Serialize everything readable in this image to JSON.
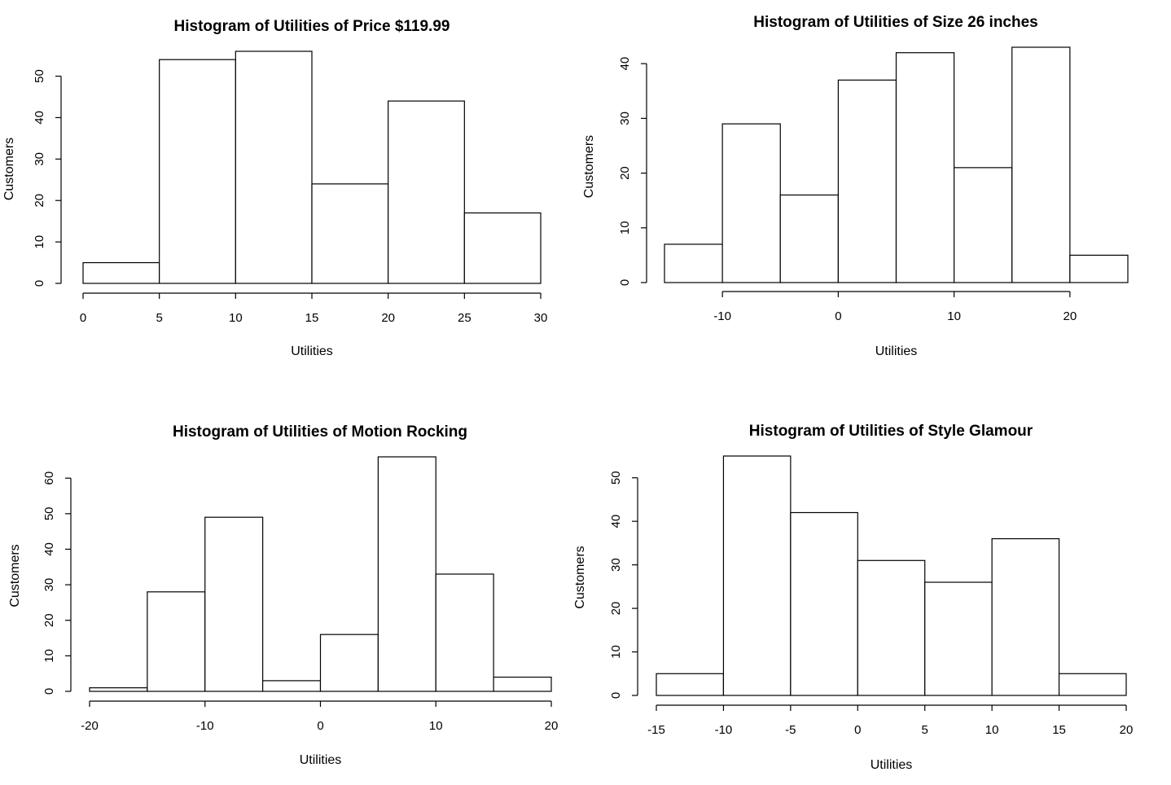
{
  "chart_data": [
    {
      "type": "bar",
      "title": "Histogram of Utilities of Price $119.99",
      "xlabel": "Utilities",
      "ylabel": "Customers",
      "bins": [
        [
          0,
          5
        ],
        [
          5,
          10
        ],
        [
          10,
          15
        ],
        [
          15,
          20
        ],
        [
          20,
          25
        ],
        [
          25,
          30
        ]
      ],
      "values": [
        5,
        54,
        56,
        24,
        44,
        17
      ],
      "xticks": [
        0,
        5,
        10,
        15,
        20,
        25,
        30
      ],
      "xtick_labels": [
        "0",
        "5",
        "10",
        "15",
        "20",
        "25",
        "30"
      ],
      "yticks": [
        0,
        10,
        20,
        30,
        40,
        50
      ],
      "ytick_labels": [
        "0",
        "10",
        "20",
        "30",
        "40",
        "50"
      ],
      "xlim": [
        0,
        30
      ],
      "ylim": [
        0,
        56
      ],
      "grid": false
    },
    {
      "type": "bar",
      "title": "Histogram of Utilities of Size 26 inches",
      "xlabel": "Utilities",
      "ylabel": "Customers",
      "bins": [
        [
          -15,
          -10
        ],
        [
          -10,
          -5
        ],
        [
          -5,
          0
        ],
        [
          0,
          5
        ],
        [
          5,
          10
        ],
        [
          10,
          15
        ],
        [
          15,
          20
        ],
        [
          20,
          25
        ]
      ],
      "values": [
        7,
        29,
        16,
        37,
        42,
        21,
        43,
        5
      ],
      "xticks": [
        -10,
        0,
        10,
        20
      ],
      "xtick_labels": [
        "-10",
        "0",
        "10",
        "20"
      ],
      "yticks": [
        0,
        10,
        20,
        30,
        40
      ],
      "ytick_labels": [
        "0",
        "10",
        "20",
        "30",
        "40"
      ],
      "xlim": [
        -15,
        25
      ],
      "ylim": [
        0,
        43
      ],
      "grid": false
    },
    {
      "type": "bar",
      "title": "Histogram of Utilities of Motion Rocking",
      "xlabel": "Utilities",
      "ylabel": "Customers",
      "bins": [
        [
          -20,
          -15
        ],
        [
          -15,
          -10
        ],
        [
          -10,
          -5
        ],
        [
          -5,
          0
        ],
        [
          0,
          5
        ],
        [
          5,
          10
        ],
        [
          10,
          15
        ],
        [
          15,
          20
        ]
      ],
      "values": [
        1,
        28,
        49,
        3,
        16,
        66,
        33,
        4
      ],
      "xticks": [
        -20,
        -10,
        0,
        10,
        20
      ],
      "xtick_labels": [
        "-20",
        "-10",
        "0",
        "10",
        "20"
      ],
      "yticks": [
        0,
        10,
        20,
        30,
        40,
        50,
        60
      ],
      "ytick_labels": [
        "0",
        "10",
        "20",
        "30",
        "40",
        "50",
        "60"
      ],
      "xlim": [
        -20,
        20
      ],
      "ylim": [
        0,
        66
      ],
      "grid": false
    },
    {
      "type": "bar",
      "title": "Histogram of Utilities of Style Glamour",
      "xlabel": "Utilities",
      "ylabel": "Customers",
      "bins": [
        [
          -15,
          -10
        ],
        [
          -10,
          -5
        ],
        [
          -5,
          0
        ],
        [
          0,
          5
        ],
        [
          5,
          10
        ],
        [
          10,
          15
        ],
        [
          15,
          20
        ]
      ],
      "values": [
        5,
        55,
        42,
        31,
        26,
        36,
        5
      ],
      "xticks": [
        -15,
        -10,
        -5,
        0,
        5,
        10,
        15,
        20
      ],
      "xtick_labels": [
        "-15",
        "-10",
        "-5",
        "0",
        "5",
        "10",
        "15",
        "20"
      ],
      "yticks": [
        0,
        10,
        20,
        30,
        40,
        50
      ],
      "ytick_labels": [
        "0",
        "10",
        "20",
        "30",
        "40",
        "50"
      ],
      "xlim": [
        -15,
        20
      ],
      "ylim": [
        0,
        55
      ],
      "grid": false
    }
  ]
}
